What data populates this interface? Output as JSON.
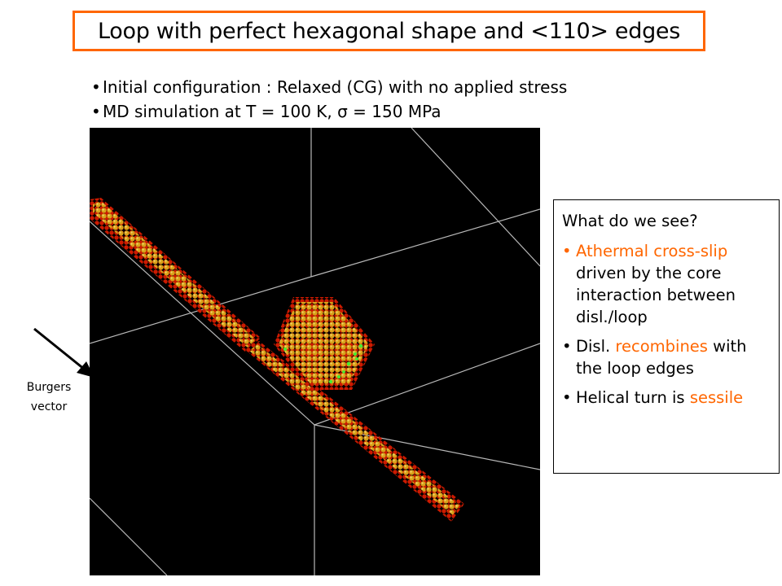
{
  "title": "Loop with perfect hexagonal shape and <110> edges",
  "bullets": [
    "Initial configuration : Relaxed (CG) with no applied stress",
    "MD simulation at T = 100 K, σ = 150 MPa"
  ],
  "info_box": {
    "heading": "What do we see?",
    "item1": {
      "orange": "Athermal cross-slip",
      "rest": "driven by the core interaction between disl./loop"
    },
    "item2": {
      "lead": "Disl. ",
      "orange": "recombines",
      "rest": "with the loop edges"
    },
    "item3": {
      "lead": "Helical turn is",
      "orange": "sessile"
    }
  },
  "burgers": {
    "line1": "Burgers",
    "line2": "vector"
  },
  "colors": {
    "accent": "#ff6600",
    "atom_core": "#d4a017",
    "atom_edge": "#cc0000",
    "atom_green": "#44ee33",
    "background": "#000000"
  }
}
